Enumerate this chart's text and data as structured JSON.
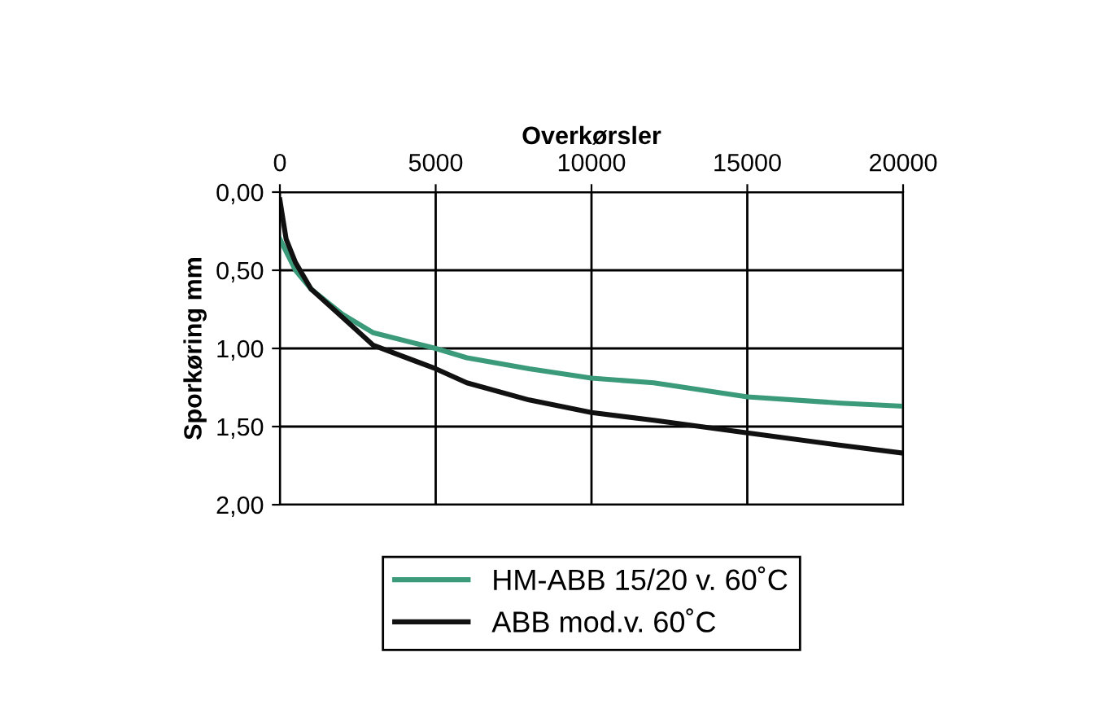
{
  "chart_data": {
    "type": "line",
    "xlabel": "Overkørsler",
    "ylabel": "Sporkøring mm",
    "xlim": [
      0,
      20000
    ],
    "xticks": [
      0,
      5000,
      10000,
      15000,
      20000
    ],
    "ylim": [
      2.0,
      0.0
    ],
    "yticks": [
      {
        "value": 0,
        "label": "0,00"
      },
      {
        "value": 0.5,
        "label": "0,50"
      },
      {
        "value": 1.0,
        "label": "1,00"
      },
      {
        "value": 1.5,
        "label": "1,50"
      },
      {
        "value": 2.0,
        "label": "2,00"
      }
    ],
    "grid": true,
    "legend": "bottom",
    "line_style": "solid",
    "marker": "none",
    "series": [
      {
        "name": "HM-ABB 15/20 v. 60˚C",
        "color": "#3a9a7a",
        "x": [
          0,
          500,
          1000,
          2000,
          3000,
          5000,
          6000,
          8000,
          10000,
          12000,
          15000,
          18000,
          20000
        ],
        "values": [
          0.3,
          0.5,
          0.62,
          0.78,
          0.9,
          1.0,
          1.06,
          1.13,
          1.19,
          1.22,
          1.31,
          1.35,
          1.37
        ]
      },
      {
        "name": "ABB mod.v. 60˚C",
        "color": "#111111",
        "x": [
          0,
          200,
          500,
          1000,
          2000,
          3000,
          5000,
          6000,
          8000,
          10000,
          12000,
          15000,
          18000,
          20000
        ],
        "values": [
          0.05,
          0.3,
          0.45,
          0.62,
          0.8,
          0.98,
          1.13,
          1.22,
          1.33,
          1.41,
          1.46,
          1.54,
          1.62,
          1.67
        ]
      }
    ]
  }
}
